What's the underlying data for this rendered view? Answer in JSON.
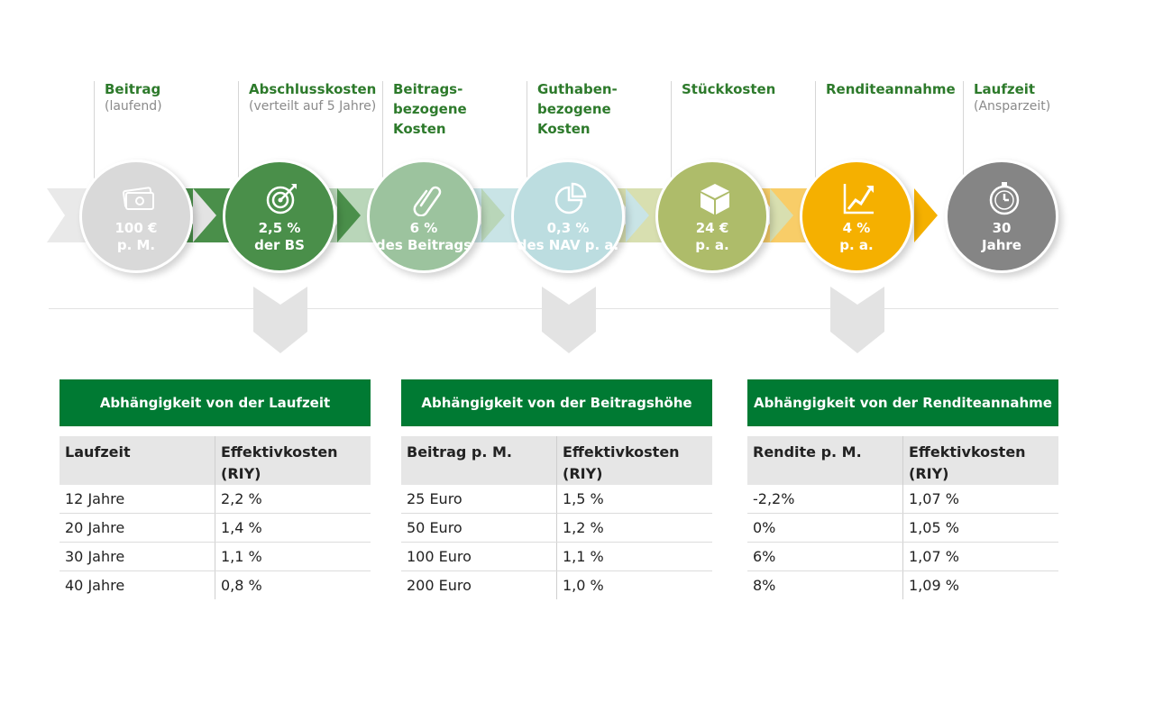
{
  "steps": [
    {
      "title": "Beitrag",
      "sub": "(laufend)",
      "value_line1": "100 €",
      "value_line2": "p. M.",
      "icon": "money-icon",
      "color": "#d9d9d9"
    },
    {
      "title": "Abschlusskosten",
      "sub": "(verteilt auf 5 Jahre)",
      "value_line1": "2,5 %",
      "value_line2": "der BS",
      "icon": "target-icon",
      "color": "#4a8f4a"
    },
    {
      "title": "Beitrags-\nbezogene\nKosten",
      "sub": "",
      "value_line1": "6 %",
      "value_line2": "des Beitrags",
      "icon": "paperclip-icon",
      "color": "#9cc39e"
    },
    {
      "title": "Guthaben-\nbezogene\nKosten",
      "sub": "",
      "value_line1": "0,3 %",
      "value_line2": "des NAV p. a.",
      "icon": "pie-chart-icon",
      "color": "#bcdde0"
    },
    {
      "title": "Stückkosten",
      "sub": "",
      "value_line1": "24 €",
      "value_line2": "p. a.",
      "icon": "box-icon",
      "color": "#aebc6a"
    },
    {
      "title": "Renditeannahme",
      "sub": "",
      "value_line1": "4 %",
      "value_line2": "p. a.",
      "icon": "growth-chart-icon",
      "color": "#f5b000"
    },
    {
      "title": "Laufzeit",
      "sub": "(Ansparzeit)",
      "value_line1": "30",
      "value_line2": "Jahre",
      "icon": "stopwatch-icon",
      "color": "#858585"
    }
  ],
  "panels": [
    {
      "header": "Abhängigkeit von der Laufzeit",
      "col1": "Laufzeit",
      "col2": "Effektivkosten (RIY)",
      "rows": [
        [
          "12 Jahre",
          "2,2 %"
        ],
        [
          "20 Jahre",
          "1,4 %"
        ],
        [
          "30 Jahre",
          "1,1 %"
        ],
        [
          "40 Jahre",
          "0,8 %"
        ]
      ]
    },
    {
      "header": "Abhängigkeit von der Beitragshöhe",
      "col1": "Beitrag p. M.",
      "col2": "Effektivkosten (RIY)",
      "rows": [
        [
          "25 Euro",
          "1,5 %"
        ],
        [
          "50 Euro",
          "1,2 %"
        ],
        [
          "100 Euro",
          "1,1 %"
        ],
        [
          "200 Euro",
          "1,0 %"
        ]
      ]
    },
    {
      "header": "Abhängigkeit von der Renditeannahme",
      "col1": "Rendite p. M.",
      "col2": "Effektivkosten (RIY)",
      "rows": [
        [
          "-2,2%",
          "1,07 %"
        ],
        [
          "0%",
          "1,05 %"
        ],
        [
          "6%",
          "1,07 %"
        ],
        [
          "8%",
          "1,09 %"
        ]
      ]
    }
  ],
  "colors": {
    "brand_green": "#007a33",
    "title_green": "#2d7a2b",
    "chevron_gray": "#e3e3e3"
  }
}
